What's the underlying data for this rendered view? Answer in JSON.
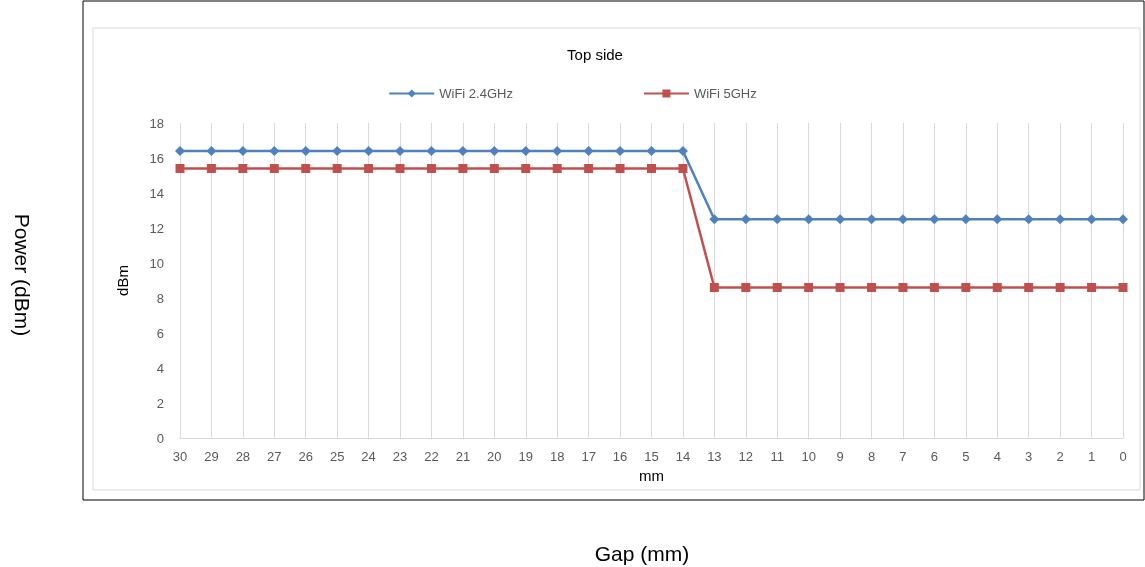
{
  "chart_data": {
    "type": "line",
    "title": "Top side",
    "xlabel": "mm",
    "ylabel": "dBm",
    "annotations": [
      "Power (dBm)",
      "Gap (mm)"
    ],
    "categories": [
      "30",
      "29",
      "28",
      "27",
      "26",
      "25",
      "24",
      "23",
      "22",
      "21",
      "20",
      "19",
      "18",
      "17",
      "16",
      "15",
      "14",
      "13",
      "12",
      "11",
      "10",
      "9",
      "8",
      "7",
      "6",
      "5",
      "4",
      "3",
      "2",
      "1",
      "0"
    ],
    "series": [
      {
        "name": "WiFi 2.4GHz",
        "color": "#4f81bd",
        "marker": "diamond",
        "values": [
          16.4,
          16.4,
          16.4,
          16.4,
          16.4,
          16.4,
          16.4,
          16.4,
          16.4,
          16.4,
          16.4,
          16.4,
          16.4,
          16.4,
          16.4,
          16.4,
          16.4,
          12.5,
          12.5,
          12.5,
          12.5,
          12.5,
          12.5,
          12.5,
          12.5,
          12.5,
          12.5,
          12.5,
          12.5,
          12.5,
          12.5
        ]
      },
      {
        "name": "WiFi 5GHz",
        "color": "#c0504d",
        "marker": "square",
        "values": [
          15.4,
          15.4,
          15.4,
          15.4,
          15.4,
          15.4,
          15.4,
          15.4,
          15.4,
          15.4,
          15.4,
          15.4,
          15.4,
          15.4,
          15.4,
          15.4,
          15.4,
          8.6,
          8.6,
          8.6,
          8.6,
          8.6,
          8.6,
          8.6,
          8.6,
          8.6,
          8.6,
          8.6,
          8.6,
          8.6,
          8.6
        ]
      }
    ],
    "ylim": [
      0,
      18
    ],
    "yticks": [
      0,
      2,
      4,
      6,
      8,
      10,
      12,
      14,
      16,
      18
    ],
    "grid": "x",
    "legend": "top"
  }
}
